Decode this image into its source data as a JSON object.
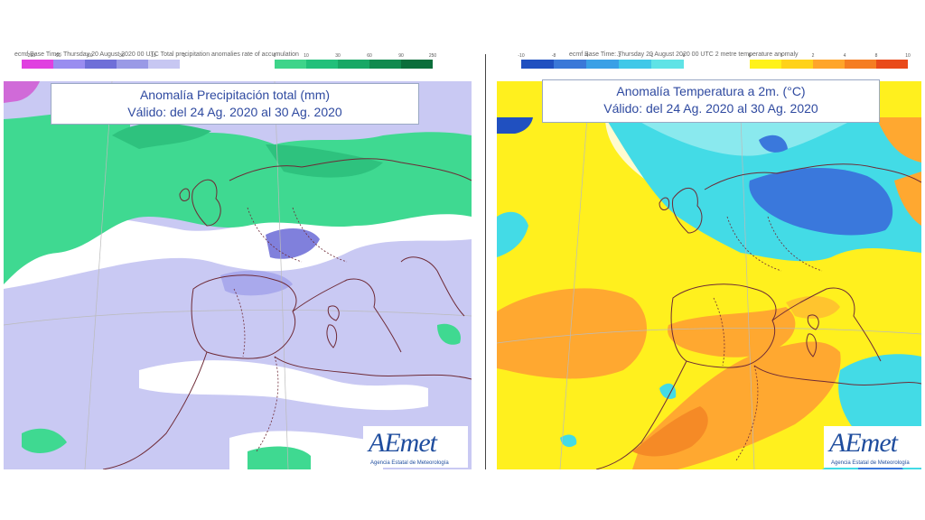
{
  "left_map": {
    "header": "ecmf  Base Time: Thursday 20 August 2020 00 UTC Total precipitation anomalies rate of accumulation",
    "title_line1": "Anomalía Precipitación total (mm)",
    "title_line2": "Válido: del 24 Ag. 2020 al 30 Ag. 2020",
    "scale_negative_labels": [
      "-250",
      "-90",
      "-60",
      "-30",
      "-10",
      "0"
    ],
    "scale_positive_labels": [
      "0",
      "10",
      "30",
      "60",
      "90",
      "250"
    ],
    "scale_negative_colors": [
      "#e040e0",
      "#9a8df0",
      "#6f6fd8",
      "#9a9ae6",
      "#c7c7f2"
    ],
    "scale_positive_colors": [
      "#3ed48a",
      "#22c07a",
      "#18a865",
      "#108a4e",
      "#0b6e3b"
    ],
    "colors": {
      "negative_light": "#c9c9f3",
      "negative_mid": "#a9a9ec",
      "negative_strong": "#8080dc",
      "positive_light": "#3fd991",
      "positive_mid": "#2ec27e",
      "land_line": "#6e2a36",
      "magenta": "#d06ad8"
    },
    "logo_text": "AEmet",
    "logo_subtext": "Agencia Estatal de Meteorología"
  },
  "right_map": {
    "header": "ecmf  Base Time: Thursday 20 August 2020 00 UTC 2 metre temperature anomaly",
    "title_line1": "Anomalía Temperatura a 2m. (°C)",
    "title_line2": "Válido: del 24 Ag. 2020 al 30 Ag. 2020",
    "scale_negative_labels": [
      "-10",
      "-8",
      "-4",
      "-2",
      "-1",
      "0"
    ],
    "scale_positive_labels": [
      "0",
      "1",
      "2",
      "4",
      "8",
      "10"
    ],
    "scale_negative_colors": [
      "#2050c0",
      "#3a78d8",
      "#3aa0e6",
      "#40c8e8",
      "#5fe3e6"
    ],
    "scale_positive_colors": [
      "#fff21a",
      "#ffd21a",
      "#ffa52a",
      "#f57d22",
      "#e94a1a"
    ],
    "colors": {
      "yellow": "#fff01e",
      "orange_light": "#ffc42e",
      "orange": "#ffa830",
      "orange_dark": "#f58a26",
      "cyan": "#43dbe6",
      "cyan_light": "#8ae9ee",
      "blue": "#3a78dc",
      "blue_dark": "#2050c0",
      "land_line": "#6e2a36"
    },
    "logo_text": "AEmet",
    "logo_subtext": "Agencia Estatal de Meteorología"
  }
}
